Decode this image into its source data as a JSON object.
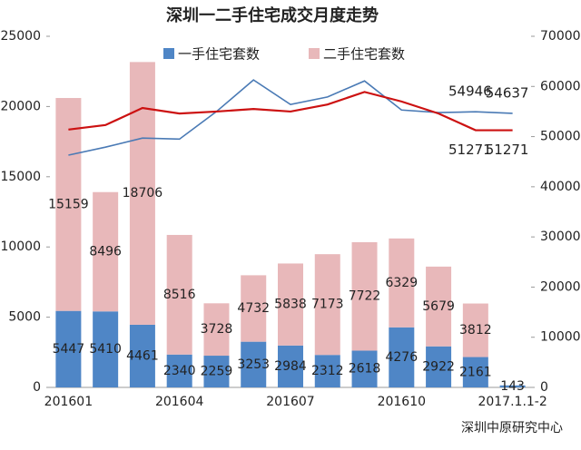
{
  "chart_data": {
    "type": "bar",
    "title": "深圳一二手住宅成交月度走势",
    "source": "深圳中原研究中心",
    "categories": [
      "201601",
      null,
      null,
      "201604",
      null,
      null,
      "201607",
      null,
      null,
      "201610",
      null,
      null,
      "2017.1.1-2"
    ],
    "series": [
      {
        "name": "一手住宅套数",
        "color": "#4f86c6",
        "type": "bar",
        "values": [
          5447,
          5410,
          4461,
          2340,
          2259,
          3253,
          2984,
          2312,
          2618,
          4276,
          2922,
          2161,
          143
        ]
      },
      {
        "name": "二手住宅套数",
        "color": "#e8b8ba",
        "type": "bar",
        "values": [
          15159,
          8496,
          18706,
          8516,
          3728,
          4732,
          5838,
          7173,
          7722,
          6329,
          5679,
          3812,
          null
        ]
      },
      {
        "color": "#4a7ab5",
        "type": "line",
        "axis": "y2",
        "values": [
          46300,
          47900,
          49700,
          49500,
          55000,
          61300,
          56400,
          57900,
          61100,
          55300,
          54800,
          54946,
          54637
        ],
        "value_labels": [
          null,
          null,
          null,
          null,
          null,
          null,
          null,
          null,
          null,
          null,
          null,
          "54946",
          "54637"
        ]
      },
      {
        "color": "#cc1111",
        "type": "line",
        "axis": "y2",
        "values": [
          51400,
          52300,
          55700,
          54600,
          55000,
          55500,
          55000,
          56400,
          58900,
          57000,
          54600,
          51271,
          51271
        ],
        "value_labels": [
          null,
          null,
          null,
          null,
          null,
          null,
          null,
          null,
          null,
          null,
          null,
          "51271",
          "51271"
        ]
      }
    ],
    "ylim": [
      0,
      25000
    ],
    "yticks": [
      0,
      5000,
      10000,
      15000,
      20000,
      25000
    ],
    "y2lim": [
      0,
      70000
    ],
    "y2ticks": [
      0,
      10000,
      20000,
      30000,
      40000,
      50000,
      60000,
      70000
    ],
    "stacked": true,
    "grid": false
  }
}
